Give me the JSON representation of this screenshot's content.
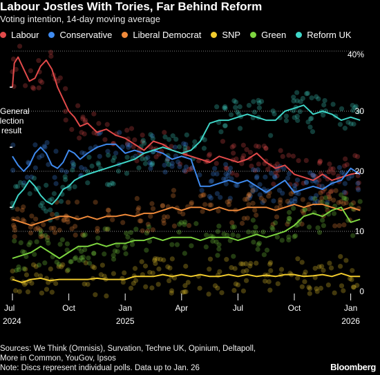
{
  "title": "Labour Jostles With Tories, Far Behind Reform",
  "subtitle": "Voting intention, 14-day moving average",
  "legend": [
    {
      "name": "Labour",
      "color": "#e34a4a"
    },
    {
      "name": "Conservative",
      "color": "#3f8bf0"
    },
    {
      "name": "Liberal Democrat",
      "color": "#f08a3a"
    },
    {
      "name": "SNP",
      "color": "#f2cc2e"
    },
    {
      "name": "Green",
      "color": "#7ed640"
    },
    {
      "name": "Reform UK",
      "color": "#3fd6c8"
    }
  ],
  "annotation": "General election result",
  "sources": [
    "Sources: We Think (Omnisis), Survation, Techne UK, Opinium, Deltapoll,",
    "More in Common, YouGov, Ipsos",
    "Note: Discs represent individual polls. Data up to Jan. 26"
  ],
  "brand": "Bloomberg",
  "chart_data": {
    "type": "line",
    "title": "Labour Jostles With Tories, Far Behind Reform",
    "subtitle": "Voting intention, 14-day moving average",
    "x_unit": "month",
    "x_start": "2024-07",
    "xlim": [
      0,
      18.9
    ],
    "ylim": [
      0,
      40
    ],
    "y_ticks": [
      0,
      10,
      20,
      30,
      "40%"
    ],
    "x_ticks": [
      {
        "month": 0,
        "label": "Jul",
        "year": "2024"
      },
      {
        "month": 3,
        "label": "Oct"
      },
      {
        "month": 6,
        "label": "Jan",
        "year": "2025"
      },
      {
        "month": 9,
        "label": "Apr"
      },
      {
        "month": 12,
        "label": "Jul"
      },
      {
        "month": 15,
        "label": "Oct"
      },
      {
        "month": 18,
        "label": "Jan",
        "year": "2026"
      }
    ],
    "election_result_markers": [
      {
        "party": "Labour",
        "value": 34
      },
      {
        "party": "Conservative",
        "value": 24
      },
      {
        "party": "Reform UK",
        "value": 14
      }
    ],
    "grid": "dotted horizontal",
    "legend_position": "top",
    "series": [
      {
        "name": "Labour",
        "color": "#e34a4a",
        "points": [
          [
            0,
            34
          ],
          [
            0.1,
            38
          ],
          [
            0.3,
            39
          ],
          [
            0.6,
            37
          ],
          [
            0.9,
            35
          ],
          [
            1.2,
            35.5
          ],
          [
            1.5,
            37.5
          ],
          [
            1.8,
            38.5
          ],
          [
            2.1,
            37
          ],
          [
            2.4,
            34
          ],
          [
            2.7,
            32
          ],
          [
            3,
            30
          ],
          [
            3.3,
            29
          ],
          [
            3.6,
            27.5
          ],
          [
            4,
            28
          ],
          [
            4.5,
            26.5
          ],
          [
            5,
            27
          ],
          [
            5.5,
            26
          ],
          [
            6,
            25.5
          ],
          [
            6.5,
            24.5
          ],
          [
            7,
            23.5
          ],
          [
            7.5,
            25
          ],
          [
            8,
            24.5
          ],
          [
            8.5,
            23.5
          ],
          [
            9,
            23
          ],
          [
            9.5,
            22.5
          ],
          [
            10,
            22
          ],
          [
            10.5,
            21.5
          ],
          [
            11,
            22.5
          ],
          [
            11.5,
            22
          ],
          [
            12,
            21.5
          ],
          [
            12.5,
            22
          ],
          [
            13,
            23
          ],
          [
            13.5,
            21.5
          ],
          [
            14,
            20.5
          ],
          [
            14.5,
            21
          ],
          [
            15,
            19.5
          ],
          [
            15.5,
            19
          ],
          [
            16,
            18.5
          ],
          [
            16.5,
            19.5
          ],
          [
            17,
            18.5
          ],
          [
            17.5,
            19
          ],
          [
            18,
            19.5
          ],
          [
            18.5,
            19.8
          ]
        ]
      },
      {
        "name": "Conservative",
        "color": "#3f8bf0",
        "points": [
          [
            0,
            22.5
          ],
          [
            0.3,
            21
          ],
          [
            0.6,
            20
          ],
          [
            0.9,
            21
          ],
          [
            1.2,
            23
          ],
          [
            1.5,
            24
          ],
          [
            1.8,
            23
          ],
          [
            2.1,
            21
          ],
          [
            2.4,
            20.5
          ],
          [
            2.7,
            21.5
          ],
          [
            3,
            23.5
          ],
          [
            3.3,
            23
          ],
          [
            3.6,
            22
          ],
          [
            4,
            23
          ],
          [
            4.5,
            24
          ],
          [
            5,
            24.5
          ],
          [
            5.5,
            24.5
          ],
          [
            6,
            23
          ],
          [
            6.5,
            23.5
          ],
          [
            7,
            23
          ],
          [
            7.5,
            23.5
          ],
          [
            8,
            23
          ],
          [
            8.5,
            22
          ],
          [
            9,
            22.5
          ],
          [
            9.5,
            22
          ],
          [
            10,
            17.5
          ],
          [
            10.5,
            17.5
          ],
          [
            11,
            18
          ],
          [
            11.5,
            18.5
          ],
          [
            12,
            18
          ],
          [
            12.5,
            18.5
          ],
          [
            13,
            17.5
          ],
          [
            13.5,
            16.5
          ],
          [
            14,
            17.5
          ],
          [
            14.5,
            18.5
          ],
          [
            15,
            16.5
          ],
          [
            15.5,
            17
          ],
          [
            16,
            17.5
          ],
          [
            16.5,
            17
          ],
          [
            17,
            18
          ],
          [
            17.5,
            18.5
          ],
          [
            18,
            20.5
          ],
          [
            18.5,
            19.5
          ]
        ]
      },
      {
        "name": "Liberal Democrat",
        "color": "#f08a3a",
        "points": [
          [
            0,
            12
          ],
          [
            0.5,
            11.5
          ],
          [
            1,
            11
          ],
          [
            1.5,
            11.5
          ],
          [
            2,
            12
          ],
          [
            2.5,
            12.5
          ],
          [
            3,
            12.5
          ],
          [
            3.5,
            12
          ],
          [
            4,
            12.5
          ],
          [
            4.5,
            12
          ],
          [
            5,
            12.5
          ],
          [
            5.5,
            12.5
          ],
          [
            6,
            12.8
          ],
          [
            6.5,
            12.5
          ],
          [
            7,
            13
          ],
          [
            7.5,
            13
          ],
          [
            8,
            13.5
          ],
          [
            8.5,
            14
          ],
          [
            9,
            13.5
          ],
          [
            9.5,
            14
          ],
          [
            10,
            14
          ],
          [
            10.5,
            13.5
          ],
          [
            11,
            14
          ],
          [
            11.5,
            13.5
          ],
          [
            12,
            13.5
          ],
          [
            12.5,
            14
          ],
          [
            13,
            14
          ],
          [
            13.5,
            14
          ],
          [
            14,
            13.5
          ],
          [
            14.5,
            14
          ],
          [
            15,
            14.5
          ],
          [
            15.5,
            14
          ],
          [
            16,
            14.5
          ],
          [
            16.5,
            14.5
          ],
          [
            17,
            14
          ],
          [
            17.5,
            13.5
          ],
          [
            18,
            14
          ],
          [
            18.5,
            13.5
          ]
        ]
      },
      {
        "name": "SNP",
        "color": "#f2cc2e",
        "points": [
          [
            0,
            2
          ],
          [
            0.5,
            1.5
          ],
          [
            1,
            2
          ],
          [
            1.5,
            2.2
          ],
          [
            2,
            1.8
          ],
          [
            2.5,
            2
          ],
          [
            3,
            2
          ],
          [
            3.5,
            2
          ],
          [
            4,
            2
          ],
          [
            4.5,
            2.2
          ],
          [
            5,
            2
          ],
          [
            5.5,
            2
          ],
          [
            6,
            2
          ],
          [
            6.5,
            2.5
          ],
          [
            7,
            2.5
          ],
          [
            7.5,
            2.5
          ],
          [
            8,
            2.8
          ],
          [
            8.5,
            2.5
          ],
          [
            9,
            2.8
          ],
          [
            9.5,
            2.5
          ],
          [
            10,
            2.8
          ],
          [
            10.5,
            2.5
          ],
          [
            11,
            2.5
          ],
          [
            11.5,
            2.8
          ],
          [
            12,
            2.5
          ],
          [
            12.5,
            2.8
          ],
          [
            13,
            2.5
          ],
          [
            13.5,
            2.7
          ],
          [
            14,
            2.5
          ],
          [
            14.5,
            2.8
          ],
          [
            15,
            2.8
          ],
          [
            15.5,
            2.5
          ],
          [
            16,
            2.6
          ],
          [
            16.5,
            2.8
          ],
          [
            17,
            2.5
          ],
          [
            17.5,
            3
          ],
          [
            18,
            2.5
          ],
          [
            18.5,
            2.5
          ]
        ]
      },
      {
        "name": "Green",
        "color": "#7ed640",
        "points": [
          [
            0,
            5.5
          ],
          [
            0.5,
            6
          ],
          [
            1,
            6.5
          ],
          [
            1.5,
            7.5
          ],
          [
            2,
            6.5
          ],
          [
            2.5,
            5.5
          ],
          [
            3,
            6.5
          ],
          [
            3.5,
            7.5
          ],
          [
            4,
            7.5
          ],
          [
            4.5,
            8
          ],
          [
            5,
            7.5
          ],
          [
            5.5,
            8
          ],
          [
            6,
            8
          ],
          [
            6.5,
            8.5
          ],
          [
            7,
            8.5
          ],
          [
            7.5,
            9
          ],
          [
            8,
            8.5
          ],
          [
            8.5,
            9
          ],
          [
            9,
            9
          ],
          [
            9.5,
            9
          ],
          [
            10,
            8.5
          ],
          [
            10.5,
            9
          ],
          [
            11,
            9
          ],
          [
            11.5,
            9
          ],
          [
            12,
            8.5
          ],
          [
            12.5,
            9
          ],
          [
            13,
            9.5
          ],
          [
            13.5,
            9
          ],
          [
            14,
            9.5
          ],
          [
            14.5,
            10
          ],
          [
            15,
            11
          ],
          [
            15.5,
            12.5
          ],
          [
            16,
            13
          ],
          [
            16.5,
            12.5
          ],
          [
            17,
            13.5
          ],
          [
            17.5,
            14
          ],
          [
            18,
            11.5
          ],
          [
            18.5,
            12
          ]
        ]
      },
      {
        "name": "Reform UK",
        "color": "#3fd6c8",
        "points": [
          [
            0,
            14
          ],
          [
            0.3,
            16
          ],
          [
            0.6,
            17
          ],
          [
            0.9,
            18.5
          ],
          [
            1.2,
            17.5
          ],
          [
            1.5,
            16
          ],
          [
            1.8,
            15
          ],
          [
            2.1,
            14.5
          ],
          [
            2.4,
            15.5
          ],
          [
            2.7,
            17
          ],
          [
            3,
            17.5
          ],
          [
            3.3,
            18.5
          ],
          [
            3.6,
            19
          ],
          [
            4,
            19.5
          ],
          [
            4.5,
            20
          ],
          [
            5,
            20.5
          ],
          [
            5.5,
            21
          ],
          [
            6,
            21.5
          ],
          [
            6.5,
            22
          ],
          [
            7,
            23
          ],
          [
            7.5,
            23.5
          ],
          [
            8,
            24
          ],
          [
            8.5,
            23.5
          ],
          [
            9,
            23
          ],
          [
            9.5,
            23.5
          ],
          [
            10,
            25
          ],
          [
            10.5,
            28
          ],
          [
            11,
            28.5
          ],
          [
            11.5,
            28.5
          ],
          [
            12,
            29
          ],
          [
            12.5,
            29.5
          ],
          [
            13,
            29
          ],
          [
            13.5,
            28.5
          ],
          [
            14,
            28.5
          ],
          [
            14.5,
            30
          ],
          [
            15,
            30.5
          ],
          [
            15.5,
            31
          ],
          [
            16,
            29.5
          ],
          [
            16.5,
            30
          ],
          [
            17,
            29.5
          ],
          [
            17.5,
            28.5
          ],
          [
            18,
            29
          ],
          [
            18.5,
            28.5
          ]
        ]
      }
    ]
  }
}
